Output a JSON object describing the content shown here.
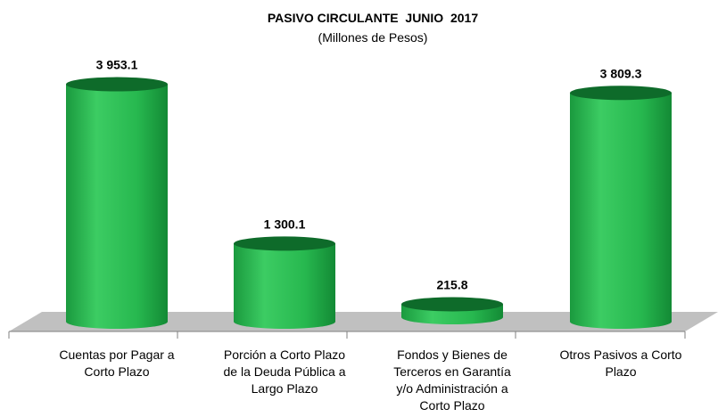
{
  "chart_data": {
    "type": "bar",
    "title": "PASIVO CIRCULANTE  JUNIO  2017",
    "subtitle": "(Millones de Pesos)",
    "categories": [
      [
        "Cuentas por Pagar a",
        "Corto Plazo"
      ],
      [
        "Porción a Corto Plazo",
        "de la Deuda Pública a",
        "Largo Plazo"
      ],
      [
        "Fondos y Bienes de",
        "Terceros en Garantía",
        "y/o Administración a",
        "Corto Plazo"
      ],
      [
        "Otros Pasivos a Corto",
        "Plazo"
      ]
    ],
    "values": [
      3953.1,
      1300.1,
      215.8,
      3809.3
    ],
    "value_labels": [
      "3 953.1",
      "1 300.1",
      "215.8",
      "3 809.3"
    ],
    "ylim": [
      0,
      4000
    ],
    "grid": false,
    "legend": false,
    "bar_shape": "cylinder",
    "colors": {
      "bar_body": "#22b14c",
      "bar_top": "#0e6b2a",
      "floor": "#c0c0c0",
      "axis": "#7f7f7f"
    }
  }
}
